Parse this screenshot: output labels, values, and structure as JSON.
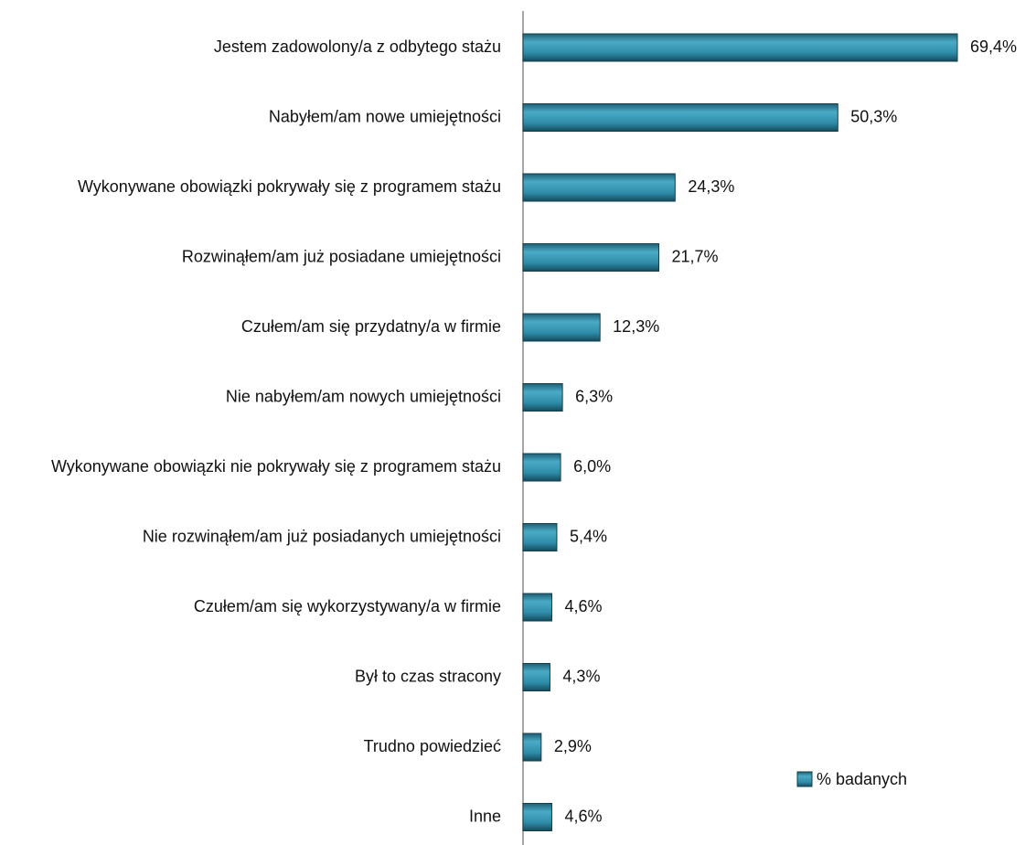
{
  "chart_data": {
    "type": "bar",
    "orientation": "horizontal",
    "categories": [
      "Jestem zadowolony/a z odbytego stażu",
      "Nabyłem/am nowe umiejętności",
      "Wykonywane obowiązki pokrywały się z programem stażu",
      "Rozwinąłem/am już posiadane umiejętności",
      "Czułem/am się przydatny/a w firmie",
      "Nie nabyłem/am nowych umiejętności",
      "Wykonywane obowiązki nie pokrywały się z programem stażu",
      "Nie rozwinąłem/am już posiadanych umiejętności",
      "Czułem/am się wykorzystywany/a w firmie",
      "Był to czas stracony",
      "Trudno powiedzieć",
      "Inne"
    ],
    "series": [
      {
        "name": "% badanych",
        "color": "#2f8ca9",
        "values": [
          69.4,
          50.3,
          24.3,
          21.7,
          12.3,
          6.3,
          6.0,
          5.4,
          4.6,
          4.3,
          2.9,
          4.6
        ],
        "value_labels": [
          "69,4%",
          "50,3%",
          "24,3%",
          "21,7%",
          "12,3%",
          "6,3%",
          "6,0%",
          "5,4%",
          "4,6%",
          "4,3%",
          "2,9%",
          "4,6%"
        ]
      }
    ],
    "legend": "bottom-right"
  }
}
